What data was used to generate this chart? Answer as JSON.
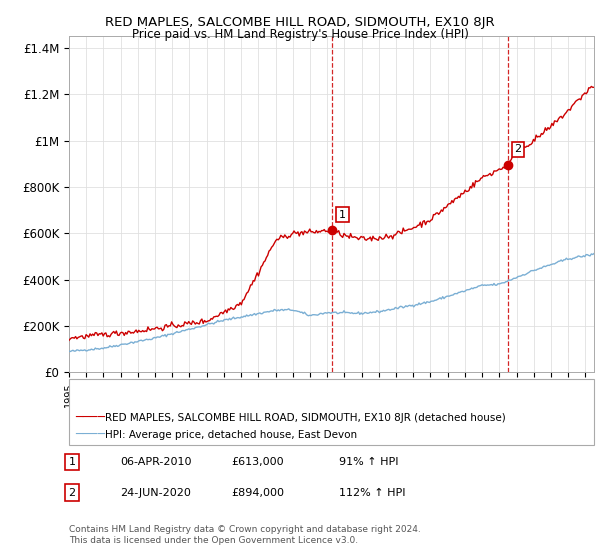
{
  "title": "RED MAPLES, SALCOMBE HILL ROAD, SIDMOUTH, EX10 8JR",
  "subtitle": "Price paid vs. HM Land Registry's House Price Index (HPI)",
  "ylabel_ticks": [
    "£0",
    "£200K",
    "£400K",
    "£600K",
    "£800K",
    "£1M",
    "£1.2M",
    "£1.4M"
  ],
  "ytick_values": [
    0,
    200000,
    400000,
    600000,
    800000,
    1000000,
    1200000,
    1400000
  ],
  "ylim": [
    0,
    1450000
  ],
  "xlim_start": 1995.0,
  "xlim_end": 2025.5,
  "sale1": {
    "date": 2010.27,
    "price": 613000,
    "label": "1"
  },
  "sale2": {
    "date": 2020.48,
    "price": 894000,
    "label": "2"
  },
  "red_line_color": "#cc0000",
  "blue_line_color": "#7bafd4",
  "vline_color": "#cc0000",
  "legend_red_label": "RED MAPLES, SALCOMBE HILL ROAD, SIDMOUTH, EX10 8JR (detached house)",
  "legend_blue_label": "HPI: Average price, detached house, East Devon",
  "table_row1": [
    "1",
    "06-APR-2010",
    "£613,000",
    "91% ↑ HPI"
  ],
  "table_row2": [
    "2",
    "24-JUN-2020",
    "£894,000",
    "112% ↑ HPI"
  ],
  "footnote1": "Contains HM Land Registry data © Crown copyright and database right 2024.",
  "footnote2": "This data is licensed under the Open Government Licence v3.0.",
  "background_color": "#ffffff",
  "grid_color": "#e0e0e0",
  "hpi_anchors_x": [
    1995,
    1997,
    2000,
    2004,
    2007,
    2008,
    2009,
    2010,
    2012,
    2013,
    2016,
    2019,
    2020,
    2022,
    2024,
    2025.5
  ],
  "hpi_anchors_y": [
    90000,
    105000,
    148000,
    225000,
    268000,
    270000,
    245000,
    258000,
    255000,
    262000,
    305000,
    375000,
    380000,
    440000,
    490000,
    510000
  ],
  "red_anchors_x": [
    1995,
    1997,
    1999,
    2001,
    2003,
    2005,
    2006,
    2007,
    2008,
    2009,
    2010.27,
    2011,
    2012,
    2013,
    2014,
    2015,
    2016,
    2017,
    2018,
    2019,
    2020.48,
    2021,
    2022,
    2023,
    2024,
    2025.3
  ],
  "red_anchors_y": [
    148000,
    163000,
    178000,
    200000,
    222000,
    300000,
    430000,
    570000,
    600000,
    605000,
    613000,
    590000,
    575000,
    580000,
    595000,
    625000,
    660000,
    720000,
    780000,
    840000,
    894000,
    950000,
    1000000,
    1060000,
    1130000,
    1230000
  ]
}
